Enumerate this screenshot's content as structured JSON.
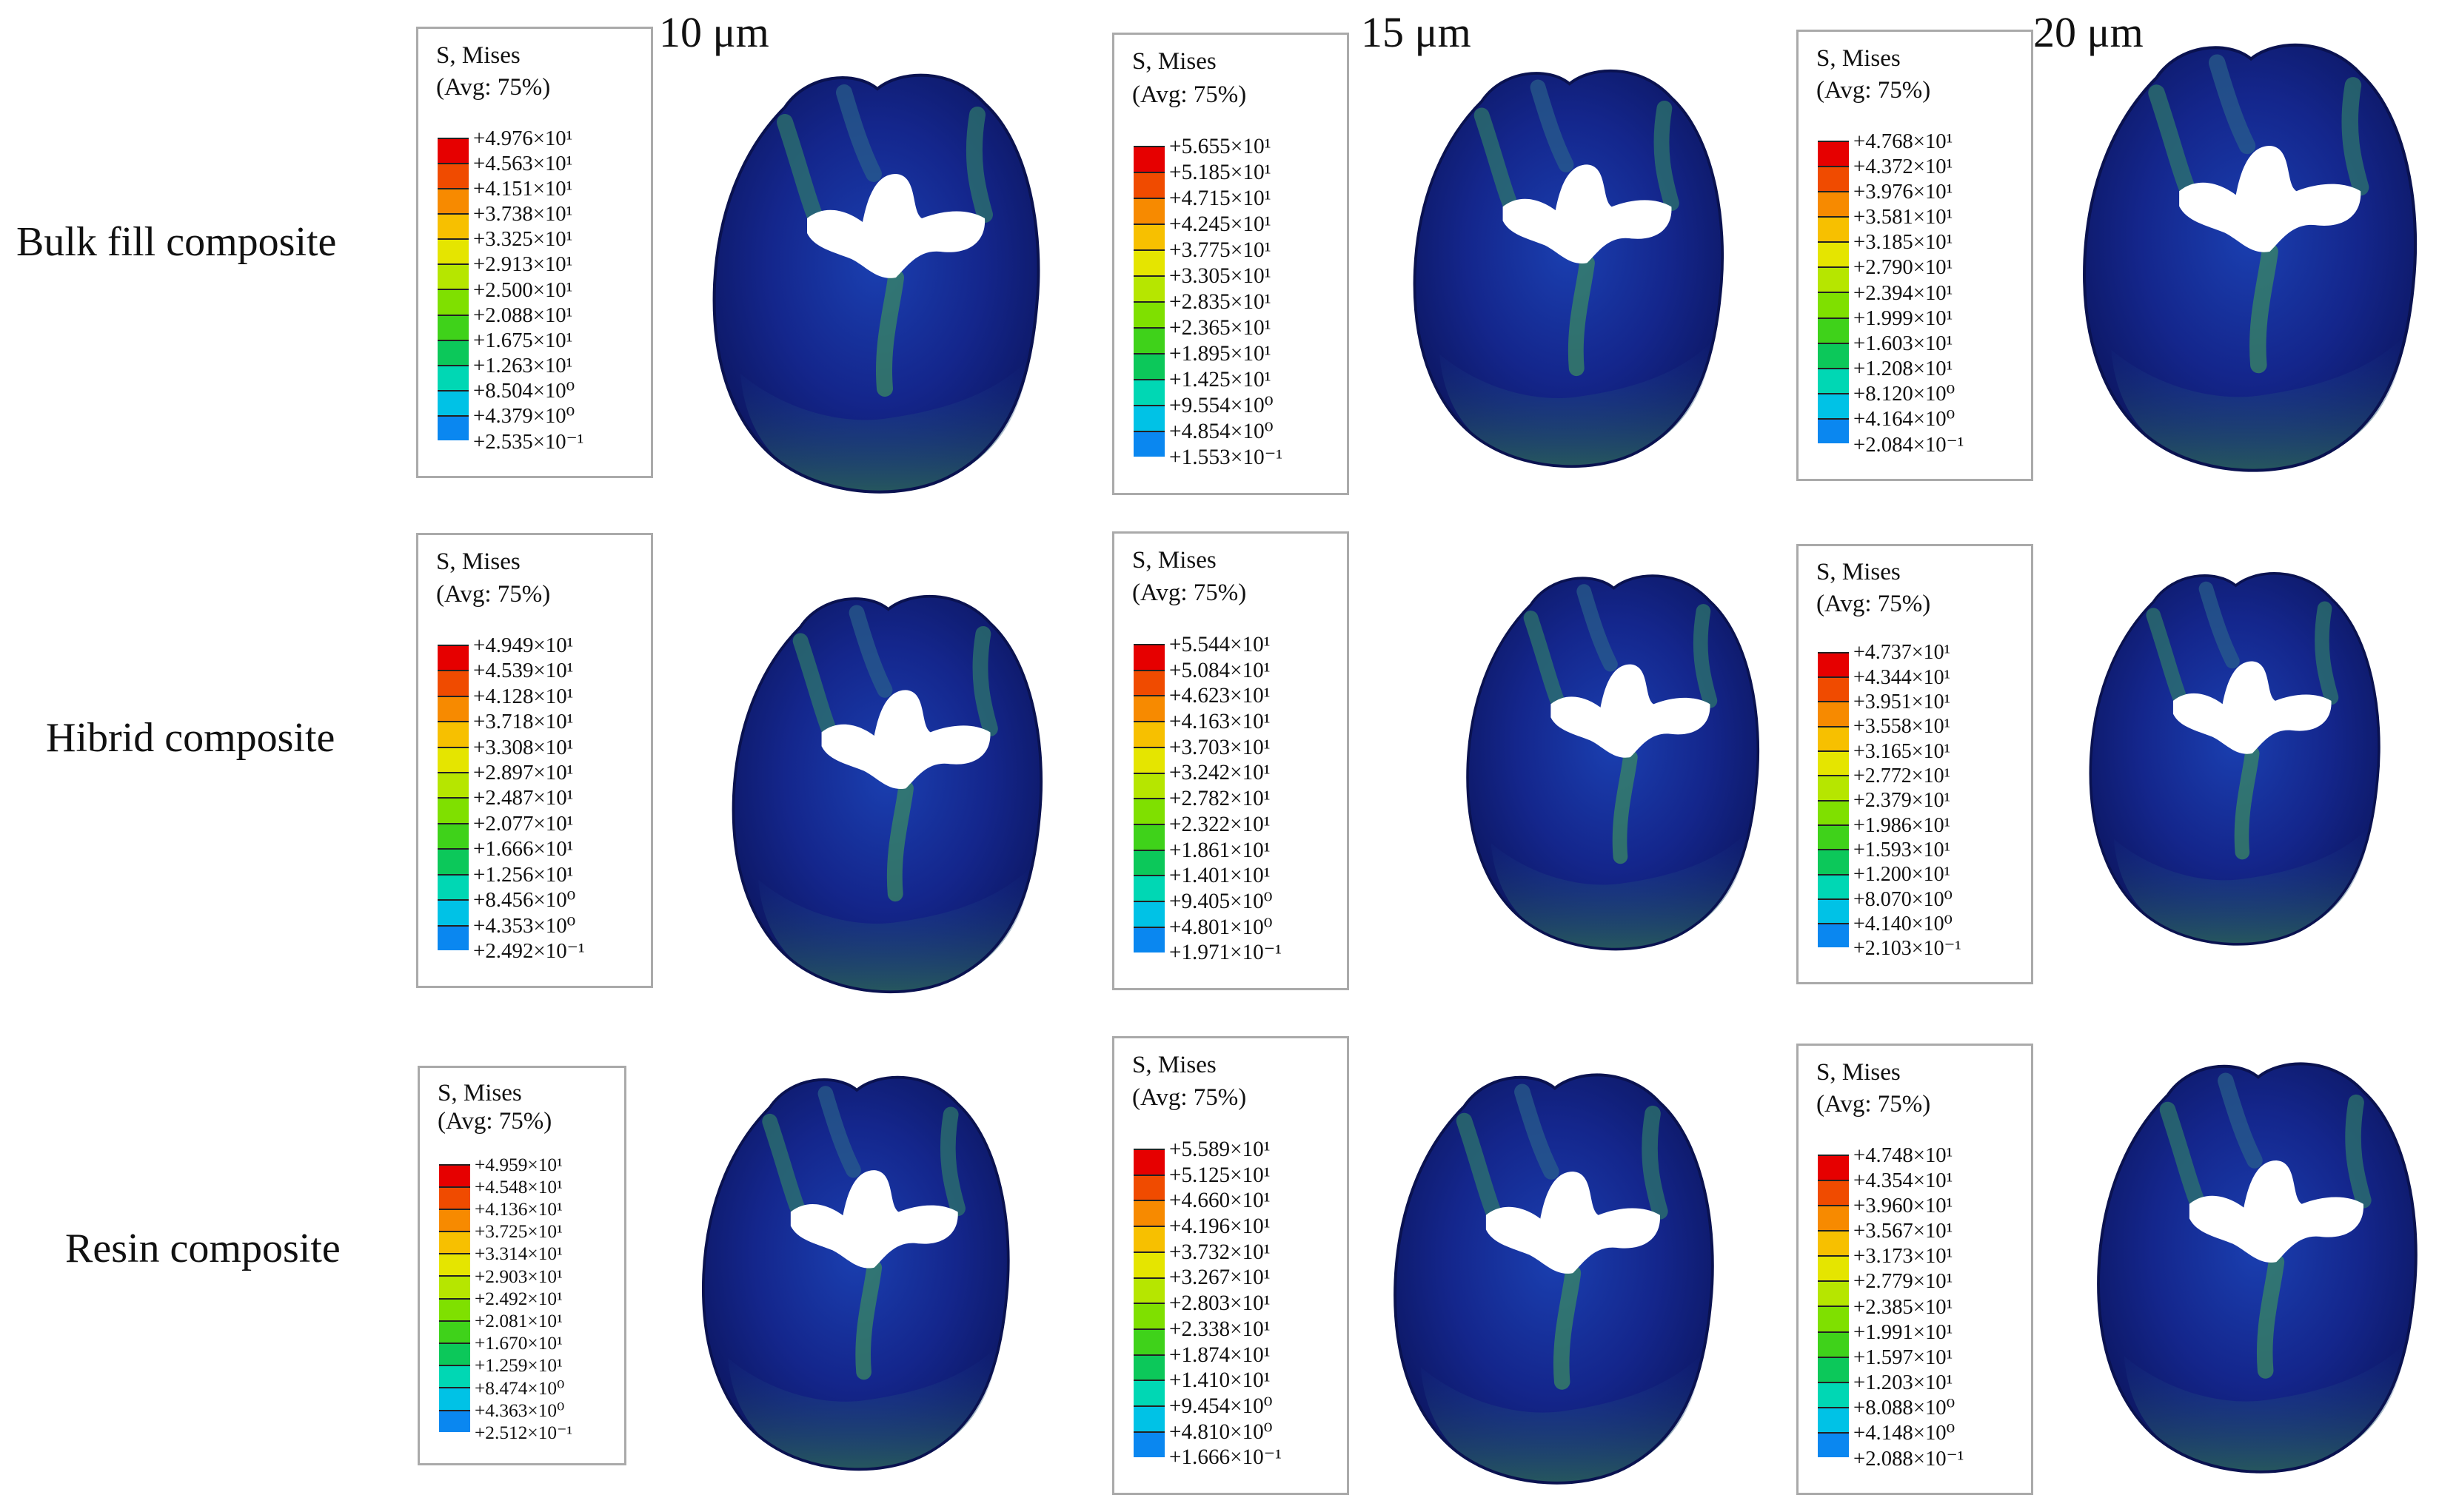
{
  "figure": {
    "columns": [
      "10 μm",
      "15 μm",
      "20 μm"
    ],
    "rows": [
      "Bulk fill composite",
      "Hibrid composite",
      "Resin composite"
    ],
    "legend_title_1": "S, Mises",
    "legend_title_2": "(Avg: 75%)",
    "legend_colors": [
      "#e60000",
      "#f04b00",
      "#f78a00",
      "#f7c000",
      "#e5e500",
      "#b6e600",
      "#7fe000",
      "#3fd21a",
      "#0cc85a",
      "#00d7b4",
      "#00c2e6",
      "#0a87f0",
      "#1a52f5",
      "#1414f5"
    ]
  },
  "legends": [
    {
      "values": [
        "+4.976×10¹",
        "+4.563×10¹",
        "+4.151×10¹",
        "+3.738×10¹",
        "+3.325×10¹",
        "+2.913×10¹",
        "+2.500×10¹",
        "+2.088×10¹",
        "+1.675×10¹",
        "+1.263×10¹",
        "+8.504×10⁰",
        "+4.379×10⁰",
        "+2.535×10⁻¹"
      ]
    },
    {
      "values": [
        "+5.655×10¹",
        "+5.185×10¹",
        "+4.715×10¹",
        "+4.245×10¹",
        "+3.775×10¹",
        "+3.305×10¹",
        "+2.835×10¹",
        "+2.365×10¹",
        "+1.895×10¹",
        "+1.425×10¹",
        "+9.554×10⁰",
        "+4.854×10⁰",
        "+1.553×10⁻¹"
      ]
    },
    {
      "values": [
        "+4.768×10¹",
        "+4.372×10¹",
        "+3.976×10¹",
        "+3.581×10¹",
        "+3.185×10¹",
        "+2.790×10¹",
        "+2.394×10¹",
        "+1.999×10¹",
        "+1.603×10¹",
        "+1.208×10¹",
        "+8.120×10⁰",
        "+4.164×10⁰",
        "+2.084×10⁻¹"
      ]
    },
    {
      "values": [
        "+4.949×10¹",
        "+4.539×10¹",
        "+4.128×10¹",
        "+3.718×10¹",
        "+3.308×10¹",
        "+2.897×10¹",
        "+2.487×10¹",
        "+2.077×10¹",
        "+1.666×10¹",
        "+1.256×10¹",
        "+8.456×10⁰",
        "+4.353×10⁰",
        "+2.492×10⁻¹"
      ]
    },
    {
      "values": [
        "+5.544×10¹",
        "+5.084×10¹",
        "+4.623×10¹",
        "+4.163×10¹",
        "+3.703×10¹",
        "+3.242×10¹",
        "+2.782×10¹",
        "+2.322×10¹",
        "+1.861×10¹",
        "+1.401×10¹",
        "+9.405×10⁰",
        "+4.801×10⁰",
        "+1.971×10⁻¹"
      ]
    },
    {
      "values": [
        "+4.737×10¹",
        "+4.344×10¹",
        "+3.951×10¹",
        "+3.558×10¹",
        "+3.165×10¹",
        "+2.772×10¹",
        "+2.379×10¹",
        "+1.986×10¹",
        "+1.593×10¹",
        "+1.200×10¹",
        "+8.070×10⁰",
        "+4.140×10⁰",
        "+2.103×10⁻¹"
      ]
    },
    {
      "values": [
        "+4.959×10¹",
        "+4.548×10¹",
        "+4.136×10¹",
        "+3.725×10¹",
        "+3.314×10¹",
        "+2.903×10¹",
        "+2.492×10¹",
        "+2.081×10¹",
        "+1.670×10¹",
        "+1.259×10¹",
        "+8.474×10⁰",
        "+4.363×10⁰",
        "+2.512×10⁻¹"
      ]
    },
    {
      "values": [
        "+5.589×10¹",
        "+5.125×10¹",
        "+4.660×10¹",
        "+4.196×10¹",
        "+3.732×10¹",
        "+3.267×10¹",
        "+2.803×10¹",
        "+2.338×10¹",
        "+1.874×10¹",
        "+1.410×10¹",
        "+9.454×10⁰",
        "+4.810×10⁰",
        "+1.666×10⁻¹"
      ]
    },
    {
      "values": [
        "+4.748×10¹",
        "+4.354×10¹",
        "+3.960×10¹",
        "+3.567×10¹",
        "+3.173×10¹",
        "+2.779×10¹",
        "+2.385×10¹",
        "+1.991×10¹",
        "+1.597×10¹",
        "+1.203×10¹",
        "+8.088×10⁰",
        "+4.148×10⁰",
        "+2.088×10⁻¹"
      ]
    }
  ]
}
